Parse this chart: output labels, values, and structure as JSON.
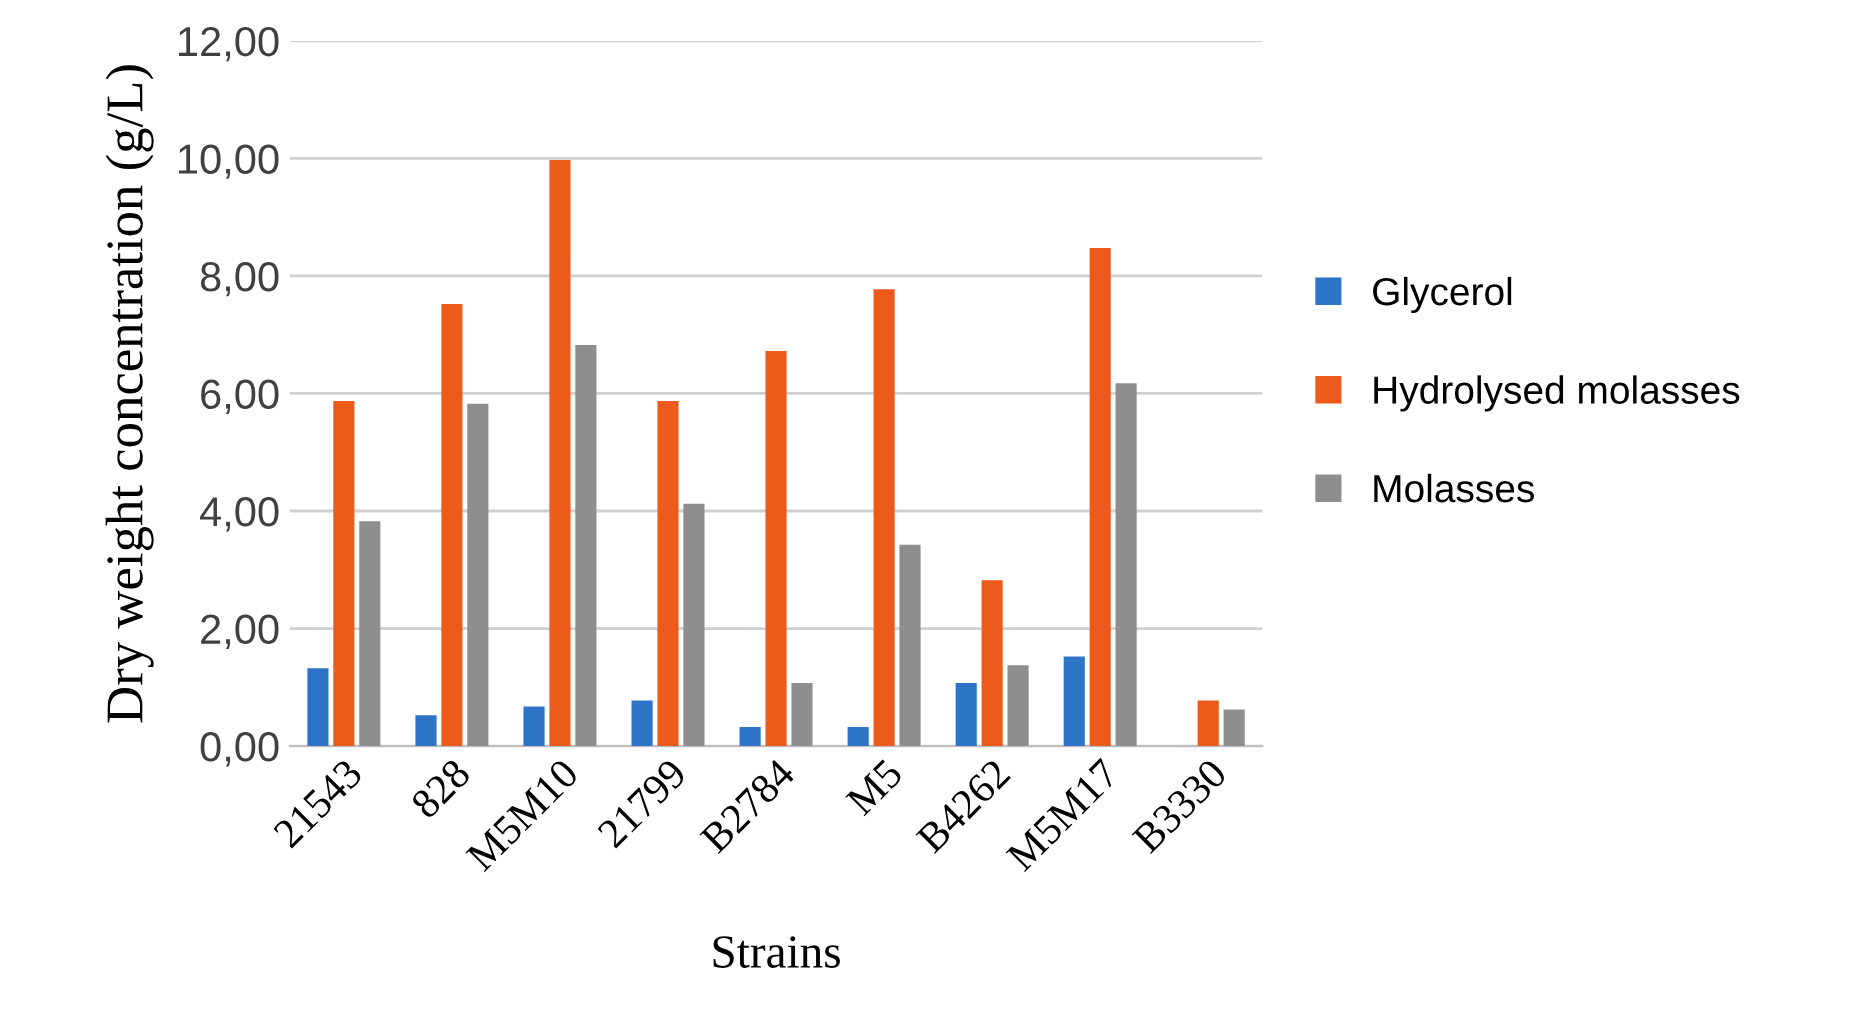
{
  "chart_data": {
    "type": "bar",
    "xlabel": "Strains",
    "ylabel": "Dry weight concentration (g/L)",
    "categories": [
      "21543",
      "828",
      "M5M10",
      "21799",
      "B2784",
      "M5",
      "B4262",
      "M5M17",
      "B3330"
    ],
    "series": [
      {
        "name": "Glycerol",
        "color": "#2e74c6",
        "values": [
          1.3,
          0.5,
          0.65,
          0.75,
          0.3,
          0.3,
          1.05,
          1.5,
          null
        ]
      },
      {
        "name": "Hydrolysed molasses",
        "color": "#ec5b1c",
        "values": [
          5.85,
          7.5,
          9.95,
          5.85,
          6.7,
          7.75,
          2.8,
          8.45,
          0.75
        ]
      },
      {
        "name": "Molasses",
        "color": "#8e8e8e",
        "values": [
          3.8,
          5.8,
          6.8,
          4.1,
          1.05,
          3.4,
          1.35,
          6.15,
          0.6
        ]
      }
    ],
    "ylim": [
      0,
      12
    ],
    "yticks": [
      {
        "value": 0,
        "label": "0,00"
      },
      {
        "value": 2,
        "label": "2,00"
      },
      {
        "value": 4,
        "label": "4,00"
      },
      {
        "value": 6,
        "label": "6,00"
      },
      {
        "value": 8,
        "label": "8,00"
      },
      {
        "value": 10,
        "label": "10,00"
      },
      {
        "value": 12,
        "label": "12,00"
      }
    ],
    "grid": "y",
    "legend": "right"
  }
}
